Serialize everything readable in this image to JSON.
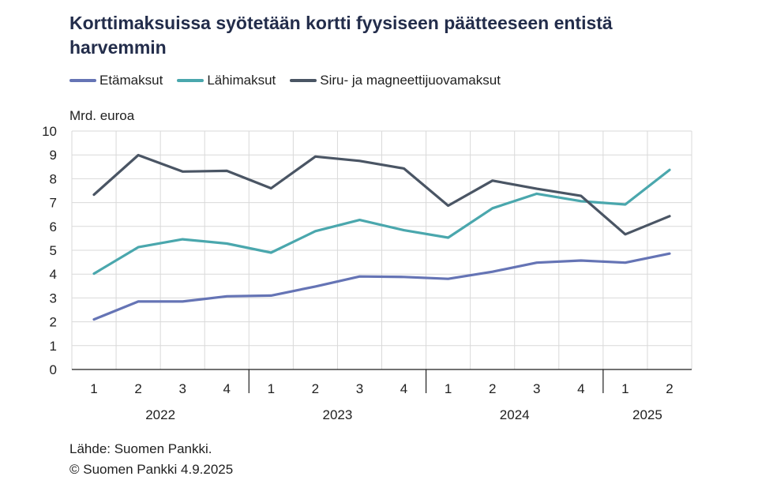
{
  "title": "Korttimaksuissa syötetään kortti fyysiseen päätteeseen entistä harvemmin",
  "unit_label": "Mrd. euroa",
  "source": "Lähde: Suomen Pankki.",
  "copyright": "© Suomen Pankki 4.9.2025",
  "colors": {
    "etamaksut": "#6574b5",
    "lahimaksut": "#4aa7ad",
    "siru": "#4a5564",
    "grid": "#d9d9d9",
    "axis": "#1f1f1f"
  },
  "chart_data": {
    "type": "line",
    "ylim": [
      0,
      10
    ],
    "yticks": [
      0,
      1,
      2,
      3,
      4,
      5,
      6,
      7,
      8,
      9,
      10
    ],
    "ylabel": "Mrd. euroa",
    "grid": true,
    "legend_position": "top-left",
    "categories": [
      "1",
      "2",
      "3",
      "4",
      "1",
      "2",
      "3",
      "4",
      "1",
      "2",
      "3",
      "4",
      "1",
      "2"
    ],
    "years": [
      {
        "label": "2022",
        "start": 0,
        "end": 3
      },
      {
        "label": "2023",
        "start": 4,
        "end": 7
      },
      {
        "label": "2024",
        "start": 8,
        "end": 11
      },
      {
        "label": "2025",
        "start": 12,
        "end": 13
      }
    ],
    "series": [
      {
        "name": "Etämaksut",
        "color": "#6574b5",
        "values": [
          2.1,
          2.85,
          2.85,
          3.07,
          3.1,
          3.48,
          3.9,
          3.88,
          3.8,
          4.1,
          4.48,
          4.57,
          4.48,
          4.86
        ]
      },
      {
        "name": "Lähimaksut",
        "color": "#4aa7ad",
        "values": [
          4.02,
          5.13,
          5.46,
          5.28,
          4.9,
          5.8,
          6.27,
          5.84,
          5.53,
          6.76,
          7.37,
          7.06,
          6.92,
          8.37
        ]
      },
      {
        "name": "Siru- ja magneettijuovamaksut",
        "color": "#4a5564",
        "values": [
          7.33,
          8.99,
          8.3,
          8.33,
          7.6,
          8.93,
          8.75,
          8.43,
          6.87,
          7.92,
          7.58,
          7.28,
          5.67,
          6.43
        ]
      }
    ]
  }
}
